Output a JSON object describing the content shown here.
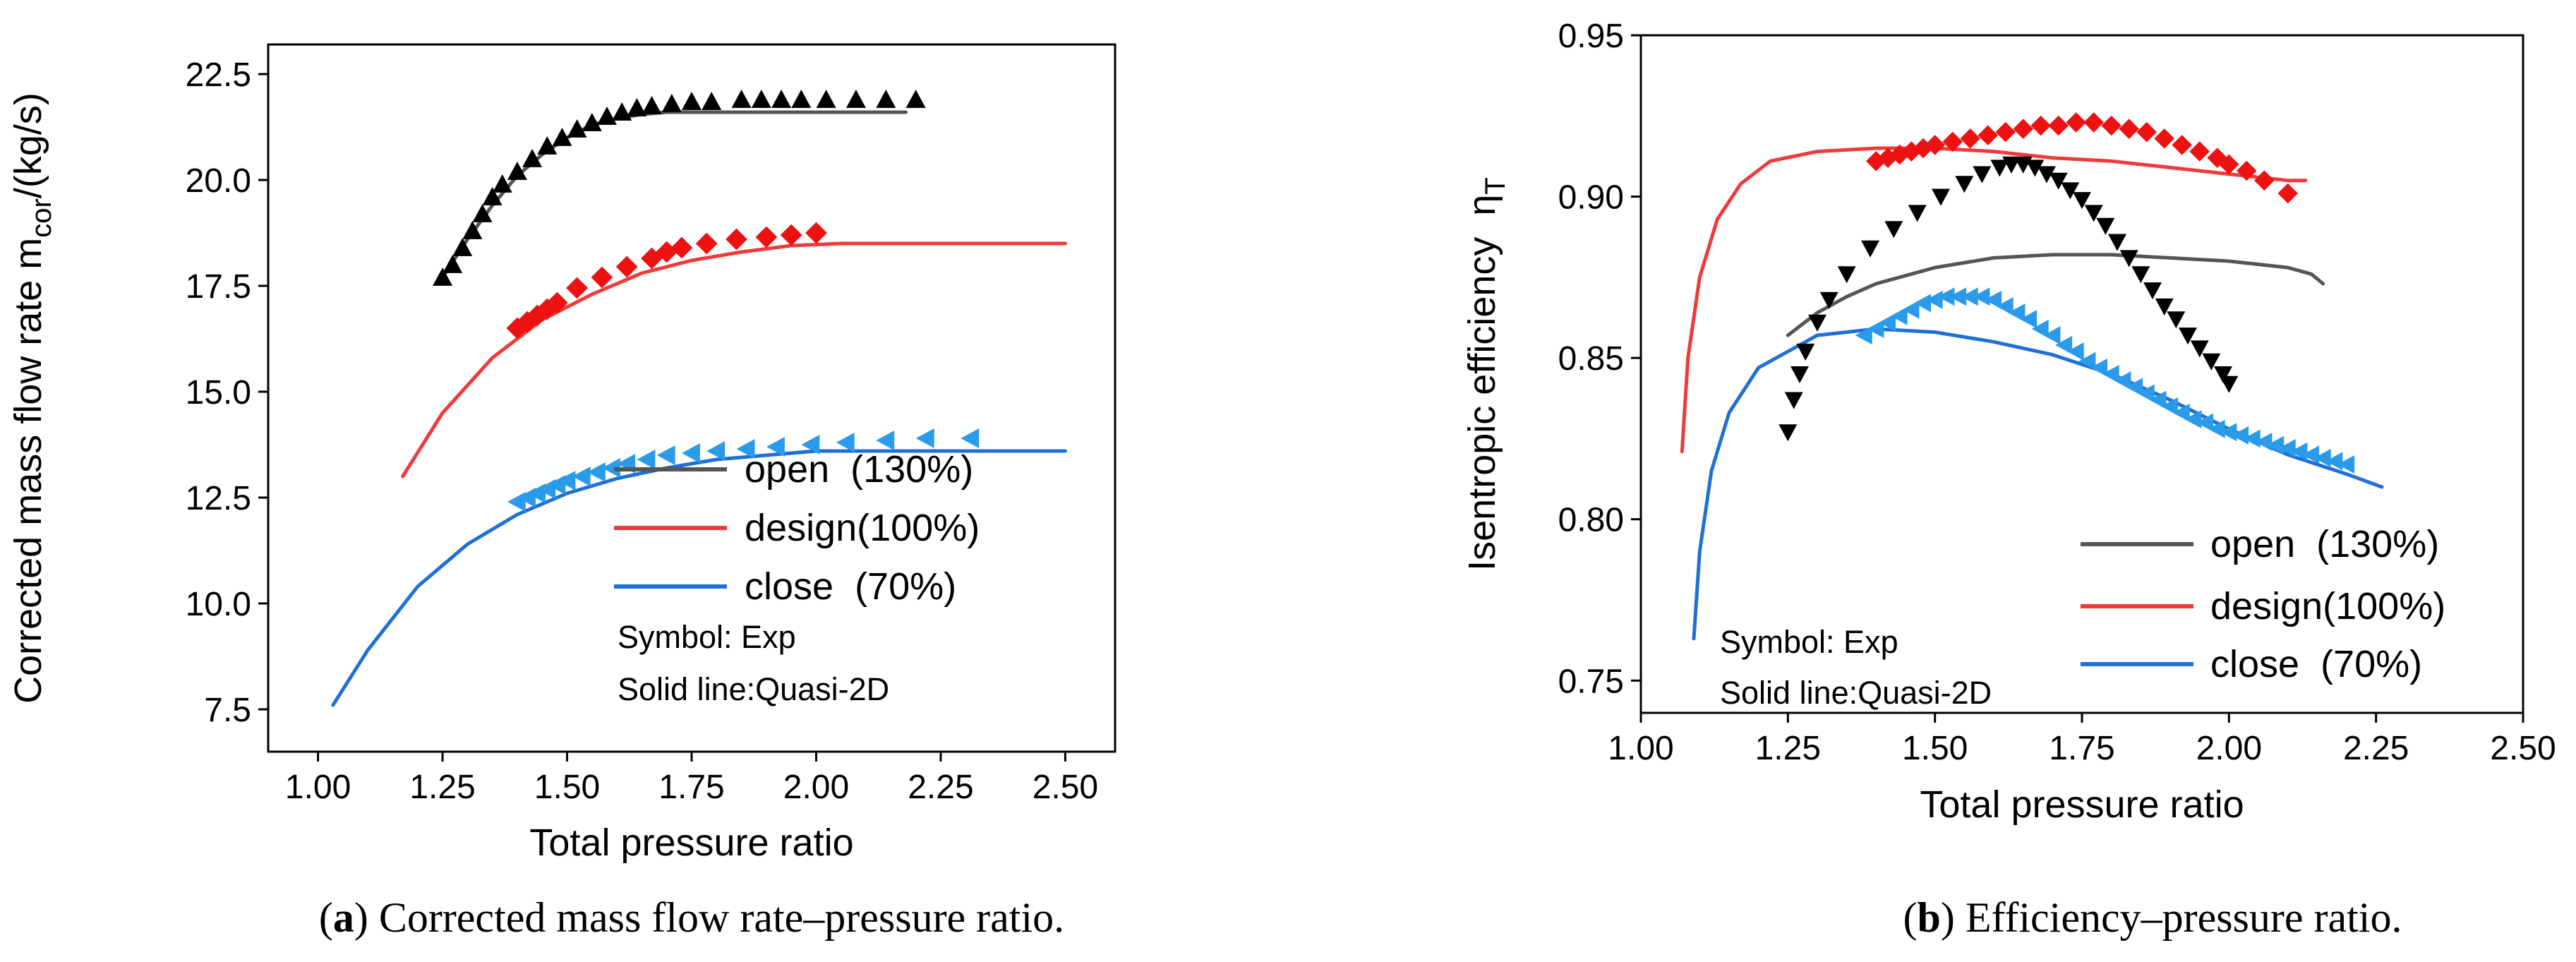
{
  "chart_data": [
    {
      "type": "line",
      "panel": "a",
      "caption_letter": "a",
      "caption_rest": ") Corrected mass flow rate–pressure ratio.",
      "caption_open": "(",
      "xlabel": "Total pressure ratio",
      "ylabel_main": "Corrected mass flow rate m",
      "ylabel_sub": "cor",
      "ylabel_tail": "/(kg/s)",
      "xlim": [
        0.9,
        2.6
      ],
      "ylim": [
        6.5,
        23.2
      ],
      "xticks": [
        1.0,
        1.25,
        1.5,
        1.75,
        2.0,
        2.25,
        2.5
      ],
      "xtick_labels": [
        "1.00",
        "1.25",
        "1.50",
        "1.75",
        "2.00",
        "2.25",
        "2.50"
      ],
      "yticks": [
        7.5,
        10.0,
        12.5,
        15.0,
        17.5,
        20.0,
        22.5
      ],
      "ytick_labels": [
        "7.5",
        "10.0",
        "12.5",
        "15.0",
        "17.5",
        "20.0",
        "22.5"
      ],
      "legend": [
        {
          "label": "open  (130%)",
          "color": "#555555"
        },
        {
          "label": "design(100%)",
          "color": "#ee3a3a"
        },
        {
          "label": "close  (70%)",
          "color": "#1f6fd6"
        }
      ],
      "notes": [
        "Symbol: Exp",
        "Solid line:Quasi-2D"
      ],
      "series": [
        {
          "name": "open (130%) Quasi-2D",
          "kind": "line",
          "color": "#555555",
          "x": [
            1.25,
            1.3,
            1.35,
            1.4,
            1.45,
            1.5,
            1.55,
            1.6,
            1.65,
            1.7,
            1.75,
            1.8,
            1.9,
            2.0,
            2.1,
            2.18
          ],
          "y": [
            17.7,
            18.6,
            19.4,
            20.1,
            20.6,
            21.0,
            21.3,
            21.45,
            21.55,
            21.6,
            21.6,
            21.6,
            21.6,
            21.6,
            21.6,
            21.6
          ]
        },
        {
          "name": "design (100%) Quasi-2D",
          "kind": "line",
          "color": "#ee3a3a",
          "x": [
            1.17,
            1.25,
            1.35,
            1.45,
            1.55,
            1.65,
            1.75,
            1.85,
            1.95,
            2.05,
            2.2,
            2.35,
            2.5
          ],
          "y": [
            13.0,
            14.5,
            15.8,
            16.7,
            17.3,
            17.8,
            18.1,
            18.3,
            18.45,
            18.5,
            18.5,
            18.5,
            18.5
          ]
        },
        {
          "name": "close (70%) Quasi-2D",
          "kind": "line",
          "color": "#1f6fd6",
          "x": [
            1.03,
            1.1,
            1.2,
            1.3,
            1.4,
            1.5,
            1.6,
            1.7,
            1.8,
            1.9,
            2.0,
            2.1,
            2.2,
            2.3,
            2.4,
            2.5
          ],
          "y": [
            7.6,
            8.9,
            10.4,
            11.4,
            12.1,
            12.6,
            12.95,
            13.2,
            13.4,
            13.5,
            13.6,
            13.6,
            13.6,
            13.6,
            13.6,
            13.6
          ]
        },
        {
          "name": "open (130%) Exp",
          "kind": "marker",
          "marker": "triangle-up",
          "color": "#000000",
          "x": [
            1.25,
            1.27,
            1.29,
            1.31,
            1.33,
            1.35,
            1.37,
            1.4,
            1.43,
            1.46,
            1.49,
            1.52,
            1.55,
            1.58,
            1.61,
            1.64,
            1.67,
            1.71,
            1.75,
            1.79,
            1.85,
            1.89,
            1.93,
            1.97,
            2.02,
            2.08,
            2.14,
            2.2
          ],
          "y": [
            17.7,
            18.0,
            18.4,
            18.8,
            19.2,
            19.6,
            19.9,
            20.2,
            20.5,
            20.8,
            21.0,
            21.2,
            21.35,
            21.5,
            21.6,
            21.7,
            21.75,
            21.8,
            21.85,
            21.85,
            21.9,
            21.9,
            21.9,
            21.9,
            21.9,
            21.9,
            21.9,
            21.9
          ]
        },
        {
          "name": "design (100%) Exp",
          "kind": "marker",
          "marker": "diamond",
          "color": "#ee1111",
          "x": [
            1.4,
            1.42,
            1.44,
            1.46,
            1.48,
            1.52,
            1.57,
            1.62,
            1.67,
            1.7,
            1.73,
            1.78,
            1.84,
            1.9,
            1.95,
            2.0
          ],
          "y": [
            16.5,
            16.65,
            16.8,
            16.95,
            17.1,
            17.45,
            17.7,
            17.95,
            18.15,
            18.3,
            18.4,
            18.5,
            18.6,
            18.65,
            18.7,
            18.75
          ]
        },
        {
          "name": "close (70%) Exp",
          "kind": "marker",
          "marker": "triangle-left",
          "color": "#2a9bea",
          "x": [
            1.4,
            1.42,
            1.44,
            1.46,
            1.48,
            1.5,
            1.53,
            1.56,
            1.59,
            1.62,
            1.66,
            1.7,
            1.75,
            1.8,
            1.86,
            1.92,
            1.99,
            2.06,
            2.14,
            2.22,
            2.31
          ],
          "y": [
            12.4,
            12.5,
            12.6,
            12.7,
            12.8,
            12.9,
            13.0,
            13.1,
            13.2,
            13.3,
            13.4,
            13.5,
            13.55,
            13.6,
            13.65,
            13.7,
            13.75,
            13.8,
            13.85,
            13.9,
            13.9
          ]
        }
      ]
    },
    {
      "type": "line",
      "panel": "b",
      "caption_letter": "b",
      "caption_rest": ") Efficiency–pressure ratio.",
      "caption_open": "(",
      "xlabel": "Total pressure ratio",
      "ylabel_main": "Isentropic efficiency  η",
      "ylabel_sub": "T",
      "ylabel_tail": "",
      "xlim": [
        1.0,
        2.5
      ],
      "ylim": [
        0.74,
        0.95
      ],
      "xticks": [
        1.0,
        1.25,
        1.5,
        1.75,
        2.0,
        2.25,
        2.5
      ],
      "xtick_labels": [
        "1.00",
        "1.25",
        "1.50",
        "1.75",
        "2.00",
        "2.25",
        "2.50"
      ],
      "yticks": [
        0.75,
        0.8,
        0.85,
        0.9,
        0.95
      ],
      "ytick_labels": [
        "0.75",
        "0.80",
        "0.85",
        "0.90",
        "0.95"
      ],
      "legend": [
        {
          "label": "open  (130%)",
          "color": "#555555"
        },
        {
          "label": "design(100%)",
          "color": "#ee3a3a"
        },
        {
          "label": "close  (70%)",
          "color": "#1f6fd6"
        }
      ],
      "notes": [
        "Symbol: Exp",
        "Solid line:Quasi-2D"
      ],
      "series": [
        {
          "name": "open (130%) Quasi-2D",
          "kind": "line",
          "color": "#555555",
          "x": [
            1.25,
            1.3,
            1.35,
            1.4,
            1.5,
            1.6,
            1.7,
            1.8,
            1.9,
            2.0,
            2.1,
            2.14,
            2.16
          ],
          "y": [
            0.857,
            0.864,
            0.869,
            0.873,
            0.878,
            0.881,
            0.882,
            0.882,
            0.881,
            0.88,
            0.878,
            0.876,
            0.873
          ]
        },
        {
          "name": "design (100%) Quasi-2D",
          "kind": "line",
          "color": "#ee3a3a",
          "x": [
            1.07,
            1.08,
            1.1,
            1.13,
            1.17,
            1.22,
            1.3,
            1.4,
            1.5,
            1.6,
            1.7,
            1.8,
            1.9,
            2.0,
            2.1,
            2.13
          ],
          "y": [
            0.821,
            0.85,
            0.875,
            0.893,
            0.904,
            0.911,
            0.914,
            0.915,
            0.915,
            0.914,
            0.912,
            0.911,
            0.909,
            0.907,
            0.905,
            0.905
          ]
        },
        {
          "name": "close (70%) Quasi-2D",
          "kind": "line",
          "color": "#1f6fd6",
          "x": [
            1.09,
            1.1,
            1.12,
            1.15,
            1.2,
            1.3,
            1.4,
            1.5,
            1.6,
            1.7,
            1.8,
            1.9,
            2.0,
            2.1,
            2.2,
            2.26
          ],
          "y": [
            0.763,
            0.79,
            0.815,
            0.833,
            0.847,
            0.857,
            0.859,
            0.858,
            0.855,
            0.851,
            0.845,
            0.837,
            0.828,
            0.82,
            0.814,
            0.81
          ]
        },
        {
          "name": "open (130%) Exp",
          "kind": "marker",
          "marker": "triangle-down",
          "color": "#000000",
          "x": [
            1.25,
            1.26,
            1.27,
            1.28,
            1.3,
            1.32,
            1.35,
            1.39,
            1.43,
            1.47,
            1.51,
            1.55,
            1.58,
            1.61,
            1.63,
            1.65,
            1.67,
            1.69,
            1.71,
            1.73,
            1.75,
            1.77,
            1.79,
            1.81,
            1.83,
            1.85,
            1.87,
            1.89,
            1.91,
            1.93,
            1.95,
            1.97,
            1.99,
            2.0
          ],
          "y": [
            0.827,
            0.837,
            0.845,
            0.852,
            0.861,
            0.868,
            0.876,
            0.884,
            0.89,
            0.895,
            0.9,
            0.904,
            0.907,
            0.909,
            0.91,
            0.91,
            0.909,
            0.907,
            0.905,
            0.902,
            0.899,
            0.895,
            0.891,
            0.886,
            0.881,
            0.876,
            0.871,
            0.866,
            0.862,
            0.857,
            0.853,
            0.849,
            0.845,
            0.842
          ]
        },
        {
          "name": "design (100%) Exp",
          "kind": "marker",
          "marker": "diamond",
          "color": "#ee1111",
          "x": [
            1.4,
            1.42,
            1.44,
            1.46,
            1.48,
            1.5,
            1.53,
            1.56,
            1.59,
            1.62,
            1.65,
            1.68,
            1.71,
            1.74,
            1.77,
            1.8,
            1.83,
            1.86,
            1.89,
            1.92,
            1.95,
            1.98,
            2.0,
            2.03,
            2.06,
            2.1
          ],
          "y": [
            0.911,
            0.912,
            0.913,
            0.914,
            0.915,
            0.916,
            0.917,
            0.918,
            0.919,
            0.92,
            0.921,
            0.922,
            0.922,
            0.923,
            0.923,
            0.922,
            0.921,
            0.92,
            0.918,
            0.916,
            0.914,
            0.912,
            0.91,
            0.908,
            0.905,
            0.901
          ]
        },
        {
          "name": "close (70%) Exp",
          "kind": "marker",
          "marker": "triangle-left",
          "color": "#2a9bea",
          "x": [
            1.38,
            1.4,
            1.42,
            1.44,
            1.46,
            1.48,
            1.5,
            1.52,
            1.54,
            1.56,
            1.58,
            1.6,
            1.62,
            1.64,
            1.66,
            1.68,
            1.7,
            1.72,
            1.74,
            1.76,
            1.78,
            1.8,
            1.82,
            1.84,
            1.86,
            1.88,
            1.9,
            1.92,
            1.94,
            1.96,
            1.98,
            2.0,
            2.02,
            2.04,
            2.06,
            2.08,
            2.1,
            2.12,
            2.14,
            2.16,
            2.18,
            2.2
          ],
          "y": [
            0.857,
            0.859,
            0.861,
            0.863,
            0.865,
            0.867,
            0.868,
            0.869,
            0.869,
            0.869,
            0.869,
            0.868,
            0.866,
            0.864,
            0.862,
            0.859,
            0.857,
            0.854,
            0.852,
            0.849,
            0.847,
            0.845,
            0.843,
            0.841,
            0.839,
            0.837,
            0.835,
            0.833,
            0.831,
            0.83,
            0.828,
            0.827,
            0.826,
            0.825,
            0.824,
            0.823,
            0.822,
            0.821,
            0.82,
            0.819,
            0.818,
            0.817
          ]
        }
      ]
    }
  ]
}
